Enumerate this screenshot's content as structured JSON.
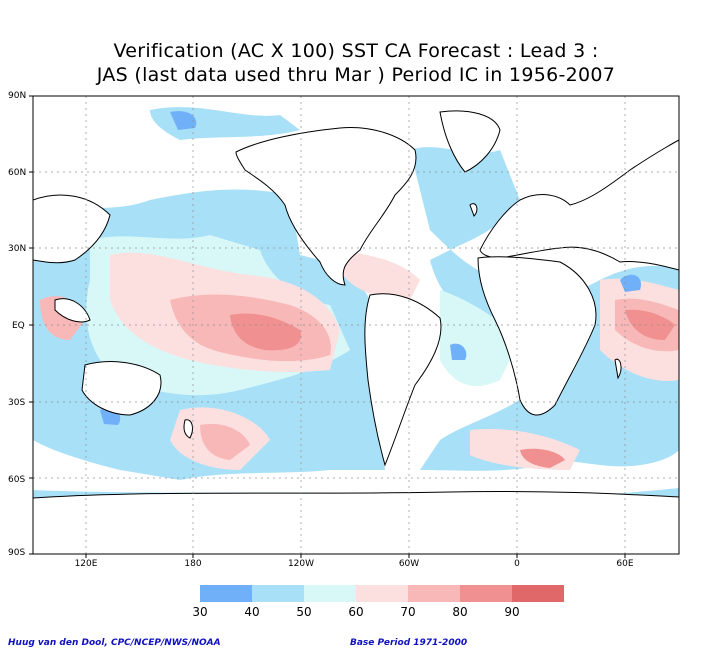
{
  "title": {
    "line1": "Verification (AC X 100) SST CA Forecast : Lead 3 :",
    "line2": "JAS (last data used thru Mar ) Period IC in 1956-2007"
  },
  "axes": {
    "lat_labels": [
      "90N",
      "60N",
      "30N",
      "EQ",
      "30S",
      "60S",
      "90S"
    ],
    "lon_labels": [
      "120E",
      "180",
      "120W",
      "60W",
      "0",
      "60E"
    ]
  },
  "colorbar": {
    "labels": [
      "30",
      "40",
      "50",
      "60",
      "70",
      "80",
      "90"
    ],
    "colors": [
      "#70b0f8",
      "#a8e0f8",
      "#d8f8f8",
      "#fce0e0",
      "#f8b8b8",
      "#f09090",
      "#e06868",
      "#d84848"
    ]
  },
  "footer": {
    "left": "Huug van den Dool, CPC/NCEP/NWS/NOAA",
    "right": "Base Period 1971-2000"
  }
}
